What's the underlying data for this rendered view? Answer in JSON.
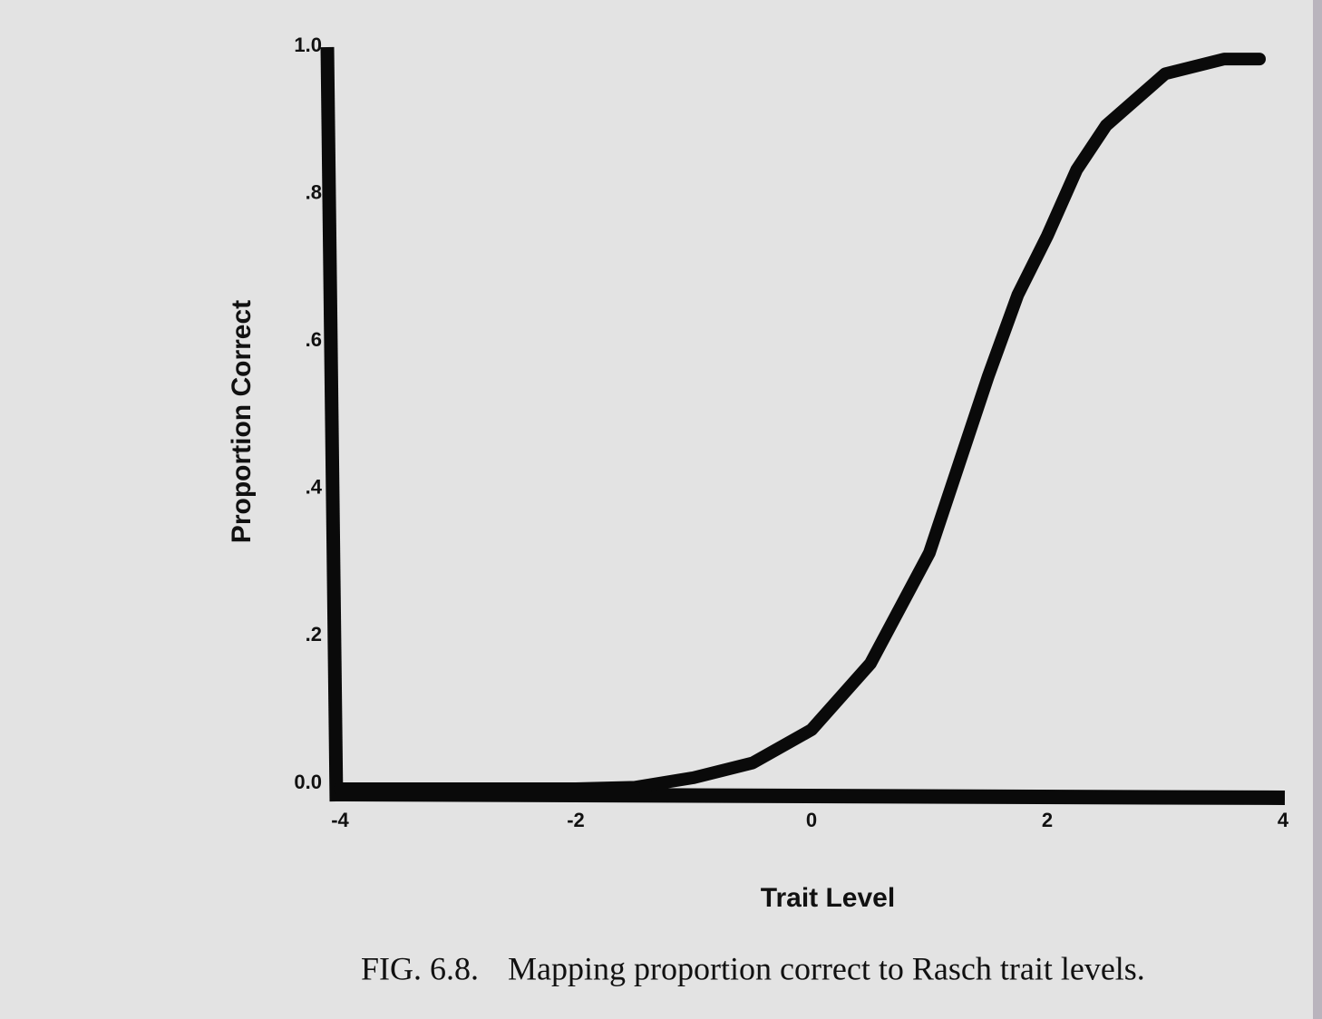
{
  "chart_data": {
    "type": "line",
    "x_label": "Trait Level",
    "y_label": "Proportion Correct",
    "figure_label": "FIG. 6.8.",
    "caption": "Mapping proportion correct to Rasch trait levels.",
    "x": [
      -4,
      -3,
      -2,
      -1.5,
      -1,
      -0.5,
      0,
      0.5,
      1,
      1.25,
      1.5,
      1.75,
      2,
      2.25,
      2.5,
      3,
      3.5,
      3.8
    ],
    "series": [
      {
        "name": "Proportion Correct",
        "color": "#0a0a0a",
        "values": [
          0,
          0,
          0,
          0.002,
          0.015,
          0.035,
          0.08,
          0.17,
          0.32,
          0.44,
          0.56,
          0.67,
          0.75,
          0.84,
          0.9,
          0.97,
          0.99,
          0.99
        ]
      }
    ],
    "xlim": [
      -4,
      4
    ],
    "xticks": [
      -4,
      -2,
      0,
      2,
      4
    ],
    "ylim": [
      0,
      1
    ],
    "yticks": [
      {
        "value": 0,
        "label": "0.0"
      },
      {
        "value": 0.2,
        "label": ".2"
      },
      {
        "value": 0.4,
        "label": ".4"
      },
      {
        "value": 0.6,
        "label": ".6"
      },
      {
        "value": 0.8,
        "label": ".8"
      },
      {
        "value": 1,
        "label": "1.0"
      }
    ]
  }
}
